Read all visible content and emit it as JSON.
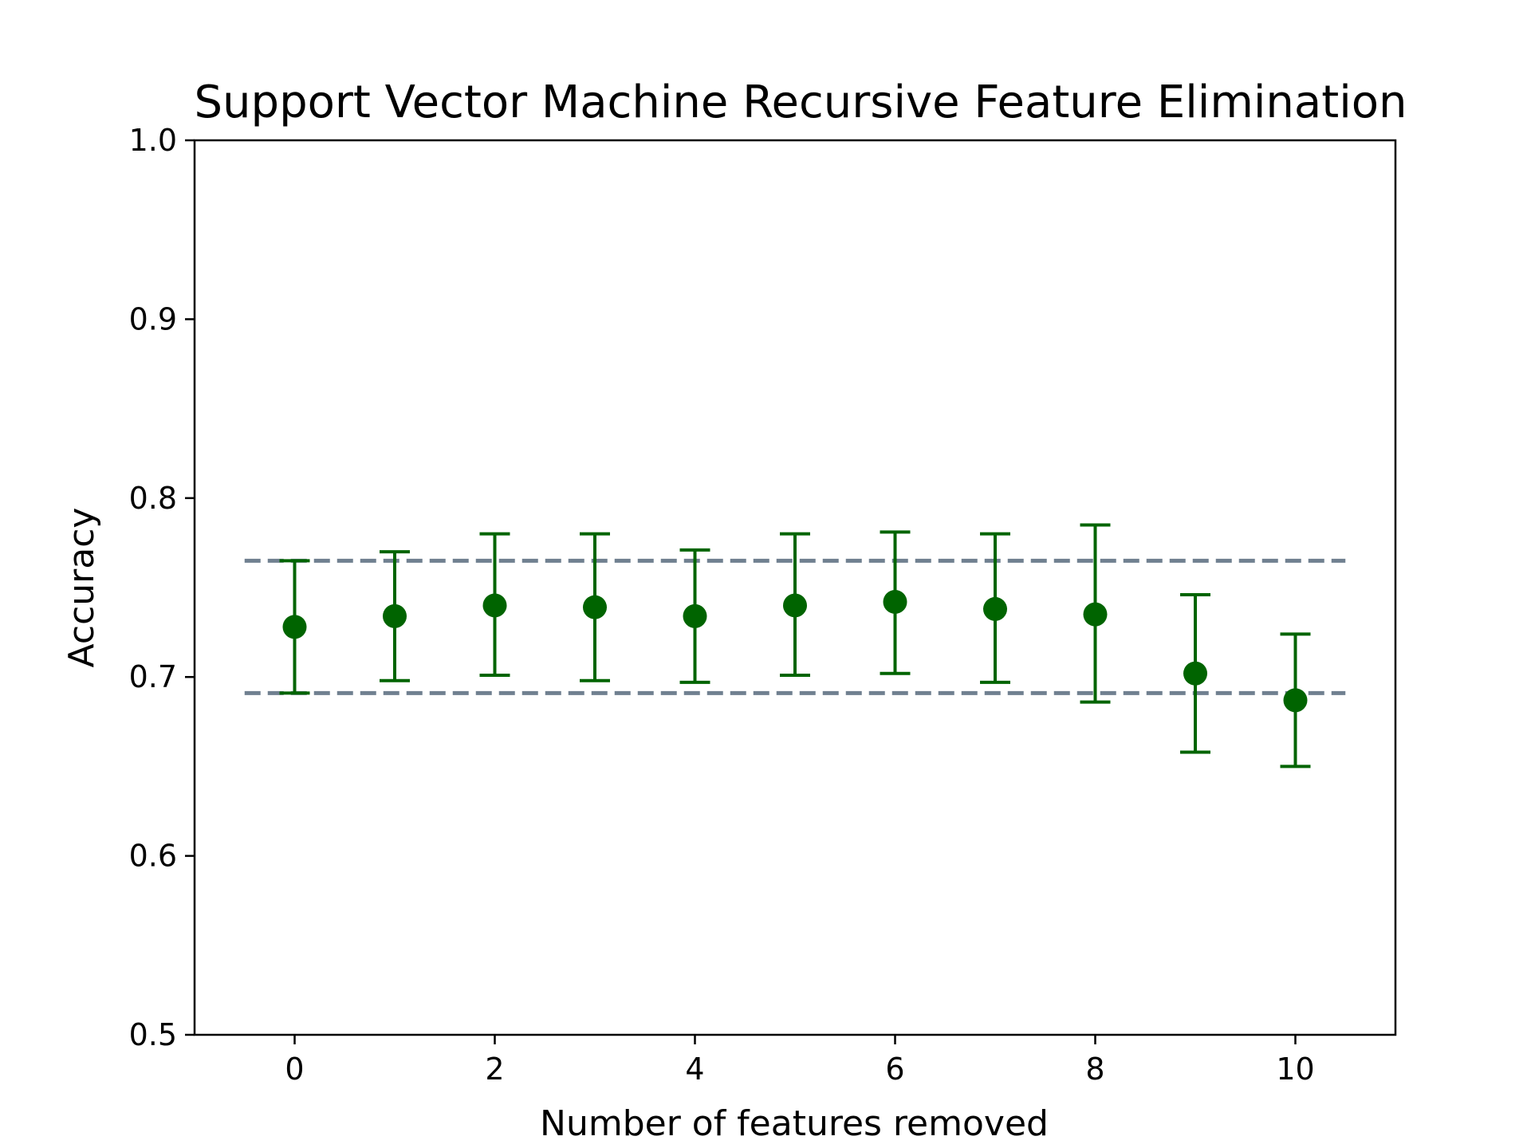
{
  "chart_data": {
    "type": "scatter",
    "title": "Support Vector Machine Recursive Feature Elimination",
    "xlabel": "Number of features removed",
    "ylabel": "Accuracy",
    "xlim": [
      -1,
      11
    ],
    "ylim": [
      0.5,
      1.0
    ],
    "x_ticks": [
      0,
      2,
      4,
      6,
      8,
      10
    ],
    "x_tick_labels": [
      "0",
      "2",
      "4",
      "6",
      "8",
      "10"
    ],
    "y_ticks": [
      0.5,
      0.6,
      0.7,
      0.8,
      0.9,
      1.0
    ],
    "y_tick_labels": [
      "0.5",
      "0.6",
      "0.7",
      "0.8",
      "0.9",
      "1.0"
    ],
    "grid": false,
    "legend": "none",
    "series": [
      {
        "marker_color": "#006400",
        "error_bars": true,
        "x": [
          0,
          1,
          2,
          3,
          4,
          5,
          6,
          7,
          8,
          9,
          10
        ],
        "y": [
          0.728,
          0.734,
          0.74,
          0.739,
          0.734,
          0.74,
          0.742,
          0.738,
          0.735,
          0.702,
          0.687
        ],
        "y_lower": [
          0.691,
          0.698,
          0.701,
          0.698,
          0.697,
          0.701,
          0.702,
          0.697,
          0.686,
          0.658,
          0.65
        ],
        "y_upper": [
          0.765,
          0.77,
          0.78,
          0.78,
          0.771,
          0.78,
          0.781,
          0.78,
          0.785,
          0.746,
          0.724
        ]
      }
    ],
    "reference_lines": [
      {
        "y": 0.765,
        "x_range": [
          -0.5,
          10.5
        ],
        "style": "dashed",
        "color": "#708090"
      },
      {
        "y": 0.691,
        "x_range": [
          -0.5,
          10.5
        ],
        "style": "dashed",
        "color": "#708090"
      }
    ]
  }
}
